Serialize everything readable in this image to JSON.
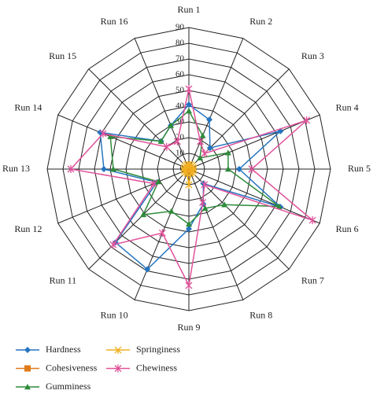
{
  "chart_data": {
    "type": "radar",
    "categories": [
      "Run 1",
      "Run 2",
      "Run 3",
      "Run 4",
      "Run 5",
      "Run 6",
      "Run 7",
      "Run 8",
      "Run 9",
      "Run 10",
      "Run 11",
      "Run 12",
      "Run 13",
      "Run 14",
      "Run 15",
      "Run 16"
    ],
    "ylim": [
      0,
      90
    ],
    "yticks": [
      0,
      10,
      20,
      30,
      40,
      50,
      60,
      70,
      80,
      90
    ],
    "grid": true,
    "series": [
      {
        "name": "Hardness",
        "color": "#2474c0",
        "marker": "diamond",
        "values": [
          41,
          34,
          19,
          63,
          32,
          63,
          13,
          24,
          38,
          69,
          66,
          22,
          54,
          61,
          25,
          30
        ]
      },
      {
        "name": "Cohesiveness",
        "color": "#e07b1a",
        "marker": "square",
        "values": [
          1,
          1,
          1,
          1,
          1,
          1,
          1,
          1,
          1,
          1,
          1,
          1,
          1,
          1,
          1,
          1
        ]
      },
      {
        "name": "Gumminess",
        "color": "#2e8b3a",
        "marker": "triangle",
        "values": [
          37,
          23,
          10,
          27,
          25,
          62,
          32,
          27,
          35,
          29,
          41,
          21,
          48,
          54,
          25,
          30
        ]
      },
      {
        "name": "Springiness",
        "color": "#f0b020",
        "marker": "cross",
        "values": [
          3,
          3,
          3,
          3,
          3,
          3,
          3,
          3,
          10,
          3,
          3,
          3,
          3,
          3,
          3,
          3
        ]
      },
      {
        "name": "Chewiness",
        "color": "#e0529a",
        "marker": "star",
        "values": [
          51,
          19,
          14,
          81,
          40,
          85,
          14,
          23,
          74,
          44,
          68,
          24,
          75,
          59,
          20,
          19
        ]
      }
    ]
  }
}
